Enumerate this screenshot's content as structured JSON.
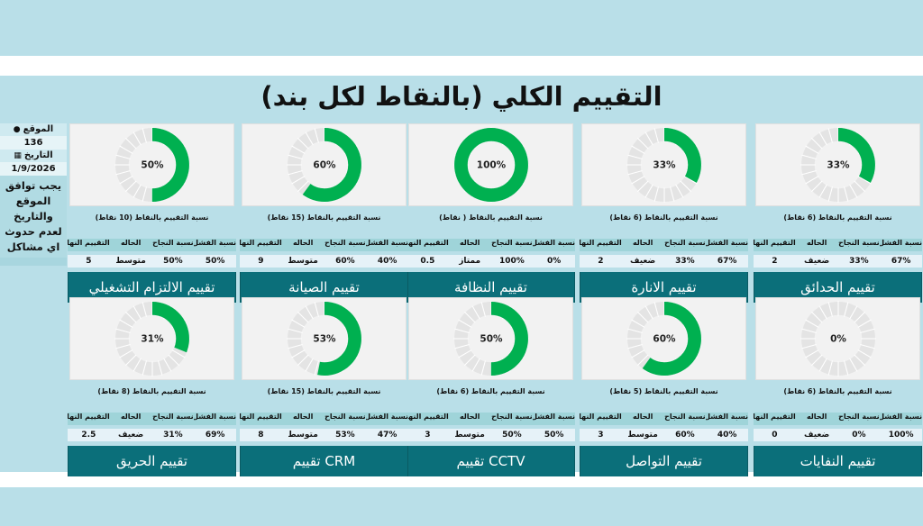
{
  "title": "التقييم الكلي (بالنقاط لكل بند)",
  "info": {
    "location_label": "الموقع",
    "location_value": "136",
    "date_label": "التاريخ",
    "date_value": "1/9/2026",
    "note": "يجب توافق الموقع والتاريخ لعدم حدوث اي مشاكل"
  },
  "colors": {
    "ring": "#00b050",
    "track": "#e4e4e4",
    "button": "#0b6f7a",
    "band": "#b9dfe8"
  },
  "headers": [
    "نسبة الفشل",
    "نسبة النجاح",
    "الحاله",
    "التقييم النهائي"
  ],
  "rows": [
    [
      {
        "name": "تقييم الحدائق",
        "percent": 33,
        "percent_label": "33%",
        "caption": "نسبة التقييم بالنقاط (6 نقاط)",
        "fail": "67%",
        "success": "33%",
        "status": "ضعيف",
        "final": "2"
      },
      {
        "name": "تقييم  الانارة",
        "percent": 33,
        "percent_label": "33%",
        "caption": "نسبة التقييم بالنقاط (6 نقاط)",
        "fail": "67%",
        "success": "33%",
        "status": "ضعيف",
        "final": "2"
      },
      {
        "name": "تقييم النظافة",
        "percent": 100,
        "percent_label": "100%",
        "caption": "نسبة التقييم بالنقاط ( نقاط)",
        "fail": "0%",
        "success": "100%",
        "status": "ممتاز",
        "final": "0.5"
      },
      {
        "name": "تقييم الصيانة",
        "percent": 60,
        "percent_label": "60%",
        "caption": "نسبة التقييم بالنقاط (15 نقاط)",
        "fail": "40%",
        "success": "60%",
        "status": "متوسط",
        "final": "9"
      },
      {
        "name": "تقييم الالتزام التشغيلي",
        "percent": 50,
        "percent_label": "50%",
        "caption": "نسبة التقييم بالنقاط (10 نقاط)",
        "fail": "50%",
        "success": "50%",
        "status": "متوسط",
        "final": "5"
      }
    ],
    [
      {
        "name": "تقييم النفايات",
        "percent": 0,
        "percent_label": "0%",
        "caption": "نسبة التقييم بالنقاط (6 نقاط)",
        "fail": "100%",
        "success": "0%",
        "status": "ضعيف",
        "final": "0"
      },
      {
        "name": "تقييم التواصل",
        "percent": 60,
        "percent_label": "60%",
        "caption": "نسبة التقييم بالنقاط (5 نقاط)",
        "fail": "40%",
        "success": "60%",
        "status": "متوسط",
        "final": "3"
      },
      {
        "name": "CCTV تقييم",
        "percent": 50,
        "percent_label": "50%",
        "caption": "نسبة التقييم بالنقاط (6 نقاط)",
        "fail": "50%",
        "success": "50%",
        "status": "متوسط",
        "final": "3"
      },
      {
        "name": "CRM تقييم",
        "percent": 53,
        "percent_label": "53%",
        "caption": "نسبة التقييم بالنقاط (15 نقاط)",
        "fail": "47%",
        "success": "53%",
        "status": "متوسط",
        "final": "8"
      },
      {
        "name": "تقييم الحريق",
        "percent": 31,
        "percent_label": "31%",
        "caption": "نسبة التقييم بالنقاط (8 نقاط)",
        "fail": "69%",
        "success": "31%",
        "status": "ضعيف",
        "final": "2.5"
      }
    ]
  ]
}
